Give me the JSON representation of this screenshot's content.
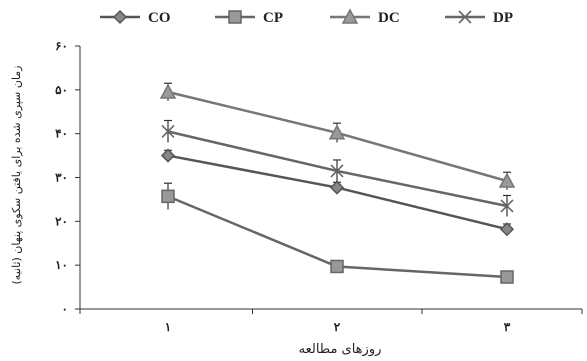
{
  "chart_data": {
    "type": "line",
    "categories": [
      "۱",
      "۲",
      "۳"
    ],
    "y_ticks": [
      "۰",
      "۱۰",
      "۲۰",
      "۳۰",
      "۴۰",
      "۵۰",
      "۶۰"
    ],
    "ylim": [
      0,
      60
    ],
    "xlabel": "روزهای مطالعه",
    "ylabel": "زمان سپری شده برای یافتن سکوی پنهان (ثانیه)",
    "legend_position": "top",
    "grid": false,
    "series": [
      {
        "name": "CO",
        "marker": "diamond",
        "color": "#555555",
        "values": [
          35,
          27.7,
          18.2
        ],
        "error": [
          1.2,
          1.2,
          1.2
        ]
      },
      {
        "name": "CP",
        "marker": "square",
        "color": "#666666",
        "values": [
          25.7,
          9.7,
          7.3
        ],
        "error": [
          3,
          0.6,
          0.6
        ]
      },
      {
        "name": "DC",
        "marker": "triangle",
        "color": "#777777",
        "values": [
          49.5,
          40.2,
          29.2
        ],
        "error": [
          2,
          2.2,
          2
        ]
      },
      {
        "name": "DP",
        "marker": "x",
        "color": "#666666",
        "values": [
          40.5,
          31.5,
          23.5
        ],
        "error": [
          2.5,
          2.5,
          2.4
        ]
      }
    ]
  }
}
